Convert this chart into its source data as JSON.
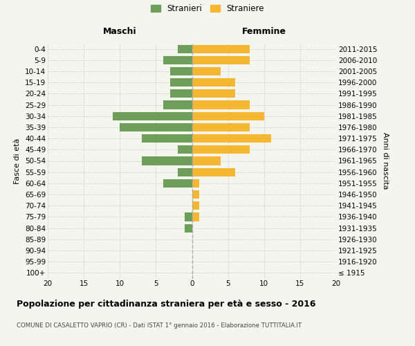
{
  "age_groups": [
    "100+",
    "95-99",
    "90-94",
    "85-89",
    "80-84",
    "75-79",
    "70-74",
    "65-69",
    "60-64",
    "55-59",
    "50-54",
    "45-49",
    "40-44",
    "35-39",
    "30-34",
    "25-29",
    "20-24",
    "15-19",
    "10-14",
    "5-9",
    "0-4"
  ],
  "birth_years": [
    "≤ 1915",
    "1916-1920",
    "1921-1925",
    "1926-1930",
    "1931-1935",
    "1936-1940",
    "1941-1945",
    "1946-1950",
    "1951-1955",
    "1956-1960",
    "1961-1965",
    "1966-1970",
    "1971-1975",
    "1976-1980",
    "1981-1985",
    "1986-1990",
    "1991-1995",
    "1996-2000",
    "2001-2005",
    "2006-2010",
    "2011-2015"
  ],
  "maschi": [
    0,
    0,
    0,
    0,
    1,
    1,
    0,
    0,
    4,
    2,
    7,
    2,
    7,
    10,
    11,
    4,
    3,
    3,
    3,
    4,
    2
  ],
  "femmine": [
    0,
    0,
    0,
    0,
    0,
    1,
    1,
    1,
    1,
    6,
    4,
    8,
    11,
    8,
    10,
    8,
    6,
    6,
    4,
    8,
    8
  ],
  "maschi_color": "#6d9e5a",
  "femmine_color": "#f5b731",
  "background_color": "#f5f5f0",
  "grid_color": "#cccccc",
  "title": "Popolazione per cittadinanza straniera per età e sesso - 2016",
  "subtitle": "COMUNE DI CASALETTO VAPRIO (CR) - Dati ISTAT 1° gennaio 2016 - Elaborazione TUTTITALIA.IT",
  "xlabel_left": "Maschi",
  "xlabel_right": "Femmine",
  "ylabel_left": "Fasce di età",
  "ylabel_right": "Anni di nascita",
  "xlim": 20,
  "legend_labels": [
    "Stranieri",
    "Straniere"
  ]
}
